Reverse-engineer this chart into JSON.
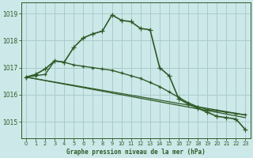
{
  "background_color": "#cce8e8",
  "grid_color": "#aacccc",
  "line_color": "#2d5a27",
  "title": "Graphe pression niveau de la mer (hPa)",
  "xlim": [
    -0.5,
    23.5
  ],
  "ylim": [
    1014.4,
    1019.4
  ],
  "yticks": [
    1015,
    1016,
    1017,
    1018,
    1019
  ],
  "xticks": [
    0,
    1,
    2,
    3,
    4,
    5,
    6,
    7,
    8,
    9,
    10,
    11,
    12,
    13,
    14,
    15,
    16,
    17,
    18,
    19,
    20,
    21,
    22,
    23
  ],
  "series": [
    {
      "x": [
        0,
        1,
        2,
        3,
        4,
        5,
        6,
        7,
        8,
        9,
        10,
        11,
        12,
        13,
        14,
        15,
        16,
        17,
        18,
        19,
        20,
        21,
        22,
        23
      ],
      "y": [
        1016.65,
        1016.75,
        1016.95,
        1017.25,
        1017.2,
        1017.75,
        1018.1,
        1018.25,
        1018.35,
        1018.95,
        1018.75,
        1018.7,
        1018.45,
        1018.4,
        1017.0,
        1016.7,
        1015.85,
        1015.65,
        1015.5,
        1015.35,
        1015.2,
        1015.15,
        1015.1,
        1014.7
      ],
      "marker": "+",
      "lw": 1.2,
      "ms": 4.0
    },
    {
      "x": [
        0,
        1,
        2,
        3,
        4,
        5,
        6,
        7,
        8,
        9,
        10,
        11,
        12,
        13,
        14,
        15,
        16,
        17,
        18,
        19,
        20,
        21,
        22,
        23
      ],
      "y": [
        1016.65,
        1016.7,
        1016.75,
        1017.25,
        1017.2,
        1017.1,
        1017.05,
        1017.0,
        1016.95,
        1016.9,
        1016.8,
        1016.7,
        1016.6,
        1016.45,
        1016.3,
        1016.1,
        1015.9,
        1015.7,
        1015.55,
        1015.45,
        1015.4,
        1015.35,
        1015.3,
        1015.25
      ],
      "marker": "+",
      "lw": 1.0,
      "ms": 3.5
    },
    {
      "x": [
        0,
        23
      ],
      "y": [
        1016.65,
        1015.25
      ],
      "marker": null,
      "lw": 0.9,
      "ms": 0
    },
    {
      "x": [
        0,
        23
      ],
      "y": [
        1016.65,
        1015.15
      ],
      "marker": null,
      "lw": 0.9,
      "ms": 0
    }
  ]
}
